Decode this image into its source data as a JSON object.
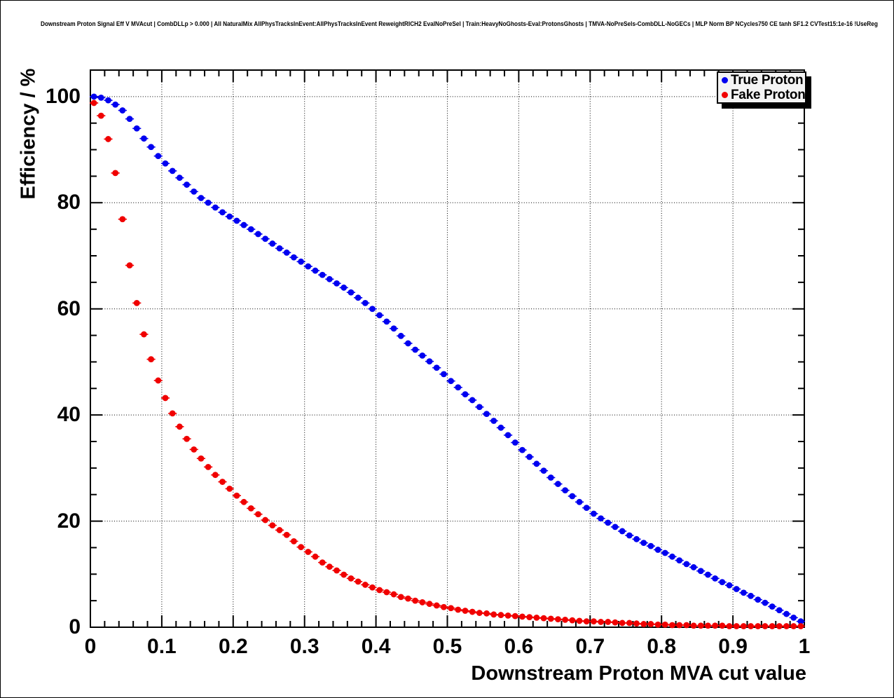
{
  "title": "Downstream Proton Signal Eff V MVAcut | CombDLLp > 0.000 | All NaturalMix AllPhysTracksInEvent:AllPhysTracksInEvent ReweightRICH2 EvalNoPreSel | Train:HeavyNoGhosts-Eval:ProtonsGhosts | TMVA-NoPreSels-CombDLL-NoGECs | MLP Norm BP NCycles750 CE tanh SF1.2 CVTest15:1e-16 !UseReg",
  "axes": {
    "y_label": "Efficiency / %",
    "x_label": "Downstream Proton MVA cut value",
    "x_tick_labels": [
      "0",
      "0.1",
      "0.2",
      "0.3",
      "0.4",
      "0.5",
      "0.6",
      "0.7",
      "0.8",
      "0.9",
      "1"
    ],
    "x_tick_values": [
      0,
      0.1,
      0.2,
      0.3,
      0.4,
      0.5,
      0.6,
      0.7,
      0.8,
      0.9,
      1
    ],
    "y_tick_labels": [
      "0",
      "20",
      "40",
      "60",
      "80",
      "100"
    ],
    "y_tick_values": [
      0,
      20,
      40,
      60,
      80,
      100
    ],
    "x_minor_step": 0.02,
    "y_minor_step": 5
  },
  "legend": [
    {
      "label": "True Proton",
      "color": "#0000f0"
    },
    {
      "label": "Fake Proton",
      "color": "#f00000"
    }
  ],
  "chart_data": {
    "type": "scatter",
    "title": "Downstream Proton Signal Eff V MVAcut",
    "xlabel": "Downstream Proton MVA cut value",
    "ylabel": "Efficiency / %",
    "xlim": [
      0,
      1
    ],
    "ylim": [
      0,
      105
    ],
    "grid": true,
    "legend_position": "top-right",
    "bin_half_width": 0.005,
    "x": [
      0.005,
      0.015,
      0.025,
      0.035,
      0.045,
      0.055,
      0.065,
      0.075,
      0.085,
      0.095,
      0.105,
      0.115,
      0.125,
      0.135,
      0.145,
      0.155,
      0.165,
      0.175,
      0.185,
      0.195,
      0.205,
      0.215,
      0.225,
      0.235,
      0.245,
      0.255,
      0.265,
      0.275,
      0.285,
      0.295,
      0.305,
      0.315,
      0.325,
      0.335,
      0.345,
      0.355,
      0.365,
      0.375,
      0.385,
      0.395,
      0.405,
      0.415,
      0.425,
      0.435,
      0.445,
      0.455,
      0.465,
      0.475,
      0.485,
      0.495,
      0.505,
      0.515,
      0.525,
      0.535,
      0.545,
      0.555,
      0.565,
      0.575,
      0.585,
      0.595,
      0.605,
      0.615,
      0.625,
      0.635,
      0.645,
      0.655,
      0.665,
      0.675,
      0.685,
      0.695,
      0.705,
      0.715,
      0.725,
      0.735,
      0.745,
      0.755,
      0.765,
      0.775,
      0.785,
      0.795,
      0.805,
      0.815,
      0.825,
      0.835,
      0.845,
      0.855,
      0.865,
      0.875,
      0.885,
      0.895,
      0.905,
      0.915,
      0.925,
      0.935,
      0.945,
      0.955,
      0.965,
      0.975,
      0.985,
      0.995
    ],
    "series": [
      {
        "name": "True Proton",
        "color": "#0000f0",
        "values": [
          100.0,
          99.8,
          99.3,
          98.5,
          97.4,
          95.8,
          94.0,
          92.1,
          90.5,
          88.8,
          87.4,
          86.0,
          84.7,
          83.4,
          82.1,
          80.9,
          80.0,
          79.1,
          78.2,
          77.4,
          76.6,
          75.8,
          75.0,
          74.1,
          73.2,
          72.3,
          71.4,
          70.6,
          69.7,
          68.9,
          68.0,
          67.2,
          66.4,
          65.6,
          64.8,
          64.0,
          63.1,
          62.1,
          61.1,
          60.0,
          58.8,
          57.6,
          56.3,
          54.9,
          53.5,
          52.3,
          51.2,
          50.1,
          48.9,
          47.7,
          46.4,
          45.2,
          43.9,
          42.8,
          41.5,
          40.2,
          38.9,
          37.6,
          36.2,
          34.8,
          33.4,
          32.1,
          30.8,
          29.5,
          28.2,
          27.0,
          25.8,
          24.7,
          23.6,
          22.5,
          21.4,
          20.5,
          19.7,
          18.9,
          18.1,
          17.3,
          16.6,
          15.9,
          15.3,
          14.6,
          14.0,
          13.3,
          12.6,
          11.9,
          11.3,
          10.6,
          9.9,
          9.2,
          8.5,
          7.9,
          7.2,
          6.5,
          5.9,
          5.2,
          4.6,
          3.9,
          3.2,
          2.5,
          1.8,
          1.1
        ]
      },
      {
        "name": "Fake Proton",
        "color": "#f00000",
        "values": [
          98.8,
          96.4,
          92.0,
          85.6,
          76.9,
          68.2,
          61.1,
          55.2,
          50.5,
          46.5,
          43.2,
          40.3,
          37.8,
          35.5,
          33.5,
          31.8,
          30.2,
          28.7,
          27.4,
          26.1,
          24.8,
          23.6,
          22.4,
          21.3,
          20.2,
          19.2,
          18.3,
          17.4,
          16.2,
          15.1,
          14.2,
          13.3,
          12.2,
          11.4,
          10.7,
          9.9,
          9.2,
          8.6,
          8.0,
          7.5,
          7.0,
          6.6,
          6.2,
          5.7,
          5.4,
          5.0,
          4.7,
          4.4,
          4.1,
          3.8,
          3.6,
          3.3,
          3.1,
          2.9,
          2.7,
          2.6,
          2.4,
          2.3,
          2.2,
          2.1,
          2.0,
          1.9,
          1.8,
          1.7,
          1.6,
          1.5,
          1.4,
          1.3,
          1.2,
          1.1,
          1.1,
          1.0,
          1.0,
          0.9,
          0.8,
          0.8,
          0.7,
          0.6,
          0.6,
          0.5,
          0.5,
          0.4,
          0.4,
          0.4,
          0.3,
          0.3,
          0.3,
          0.3,
          0.3,
          0.2,
          0.2,
          0.2,
          0.2,
          0.2,
          0.2,
          0.2,
          0.2,
          0.2,
          0.2,
          0.2
        ]
      }
    ]
  }
}
